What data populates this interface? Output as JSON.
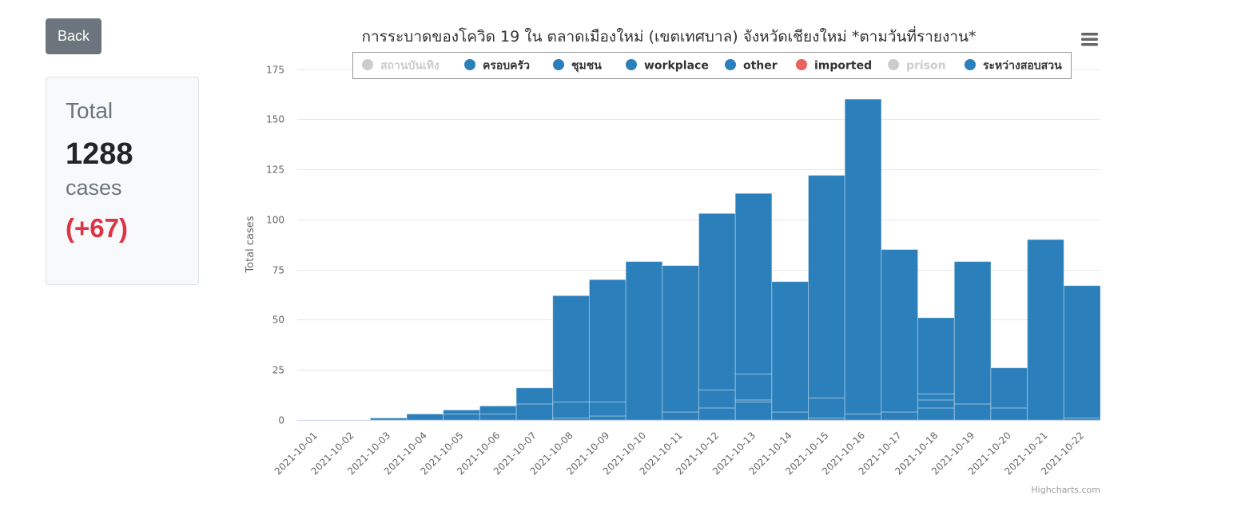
{
  "back_button": {
    "label": "Back"
  },
  "summary": {
    "label": "Total",
    "value": "1288",
    "unit": "cases",
    "delta": "(+67)"
  },
  "menu_icon": "hamburger-menu-icon",
  "credits": "Highcharts.com",
  "colors": {
    "bar": "#2b7fba",
    "imported": "#e8635c",
    "hidden": "#cccccc",
    "delta": "#dc3545"
  },
  "chart_data": {
    "type": "bar",
    "stacked": true,
    "title": "การระบาดของโควิด 19 ใน ตลาดเมืองใหม่ (เขตเทศบาล) จังหวัดเชียงใหม่ *ตามวันที่รายงาน*",
    "xlabel": "",
    "ylabel": "Total cases",
    "ylim": [
      0,
      175
    ],
    "yticks": [
      0,
      25,
      50,
      75,
      100,
      125,
      150,
      175
    ],
    "grid": true,
    "legend_position": "top",
    "categories": [
      "2021-10-01",
      "2021-10-02",
      "2021-10-03",
      "2021-10-04",
      "2021-10-05",
      "2021-10-06",
      "2021-10-07",
      "2021-10-08",
      "2021-10-09",
      "2021-10-10",
      "2021-10-11",
      "2021-10-12",
      "2021-10-13",
      "2021-10-14",
      "2021-10-15",
      "2021-10-16",
      "2021-10-17",
      "2021-10-18",
      "2021-10-19",
      "2021-10-20",
      "2021-10-21",
      "2021-10-22"
    ],
    "series": [
      {
        "name": "สถานบันเทิง",
        "visible": false,
        "color": "#cccccc",
        "values": [
          0,
          0,
          0,
          0,
          0,
          0,
          0,
          0,
          0,
          0,
          0,
          0,
          0,
          0,
          0,
          0,
          0,
          0,
          0,
          0,
          0,
          0
        ]
      },
      {
        "name": "ครอบครัว",
        "visible": true,
        "color": "#2b7fba",
        "values": [
          0,
          0,
          0,
          0,
          0,
          0,
          0,
          1,
          2,
          0,
          0,
          0,
          0,
          0,
          1,
          0,
          0,
          0,
          0,
          0,
          0,
          1
        ]
      },
      {
        "name": "ชุมชน",
        "visible": true,
        "color": "#2b7fba",
        "values": [
          0,
          0,
          0,
          0,
          0,
          0,
          0,
          0,
          0,
          0,
          0,
          6,
          9,
          0,
          0,
          0,
          0,
          6,
          0,
          0,
          0,
          0
        ]
      },
      {
        "name": "workplace",
        "visible": true,
        "color": "#2b7fba",
        "values": [
          0,
          0,
          0,
          0,
          0,
          0,
          0,
          0,
          0,
          0,
          0,
          0,
          1,
          0,
          0,
          0,
          0,
          4,
          0,
          0,
          0,
          0
        ]
      },
      {
        "name": "other",
        "visible": true,
        "color": "#2b7fba",
        "values": [
          0,
          0,
          1,
          3,
          3,
          3,
          8,
          8,
          7,
          0,
          4,
          9,
          13,
          4,
          10,
          3,
          4,
          3,
          8,
          6,
          0,
          0
        ]
      },
      {
        "name": "imported",
        "visible": true,
        "color": "#e8635c",
        "values": [
          0,
          0,
          0,
          0,
          0,
          0,
          0,
          0,
          0,
          0,
          0,
          0,
          0,
          0,
          0,
          0,
          0,
          0,
          0,
          0,
          0,
          0
        ]
      },
      {
        "name": "prison",
        "visible": false,
        "color": "#cccccc",
        "values": [
          0,
          0,
          0,
          0,
          0,
          0,
          0,
          0,
          0,
          0,
          0,
          0,
          0,
          0,
          0,
          0,
          0,
          0,
          0,
          0,
          0,
          0
        ]
      },
      {
        "name": "ระหว่างสอบสวน",
        "visible": true,
        "color": "#2b7fba",
        "values": [
          0,
          0,
          0,
          0,
          2,
          4,
          8,
          53,
          61,
          79,
          73,
          88,
          90,
          65,
          111,
          157,
          81,
          38,
          71,
          20,
          90,
          66
        ]
      }
    ]
  }
}
